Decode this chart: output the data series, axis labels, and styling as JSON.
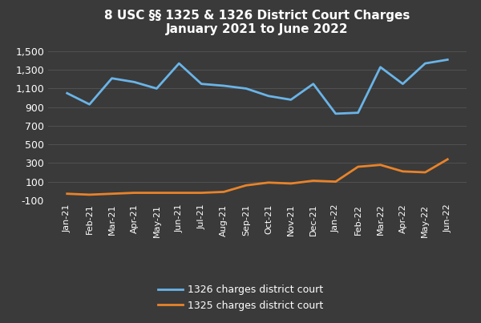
{
  "title": "8 USC §§ 1325 & 1326 District Court Charges\nJanuary 2021 to June 2022",
  "labels": [
    "Jan-21",
    "Feb-21",
    "Mar-21",
    "Apr-21",
    "May-21",
    "Jun-21",
    "Jul-21",
    "Aug-21",
    "Sep-21",
    "Oct-21",
    "Nov-21",
    "Dec-21",
    "Jan-22",
    "Feb-22",
    "Mar-22",
    "Apr-22",
    "May-22",
    "Jun-22"
  ],
  "series_1326": [
    1050,
    930,
    1210,
    1170,
    1100,
    1370,
    1150,
    1130,
    1100,
    1020,
    980,
    1150,
    830,
    840,
    1330,
    1150,
    1370,
    1410
  ],
  "series_1325": [
    -30,
    -40,
    -30,
    -20,
    -20,
    -20,
    -20,
    -10,
    60,
    90,
    80,
    110,
    100,
    260,
    280,
    210,
    200,
    340
  ],
  "color_1326": "#6ab4e8",
  "color_1325": "#e8832a",
  "background_color": "#3a3a3a",
  "text_color": "#ffffff",
  "grid_color": "#555555",
  "ylim": [
    -100,
    1600
  ],
  "yticks": [
    -100,
    100,
    300,
    500,
    700,
    900,
    1100,
    1300,
    1500
  ],
  "legend_labels": [
    "1326 charges district court",
    "1325 charges district court"
  ]
}
